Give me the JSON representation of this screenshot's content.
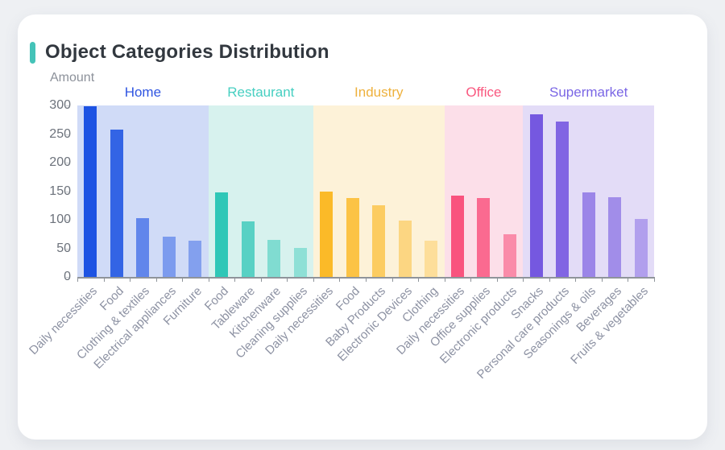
{
  "card": {
    "title": "Object Categories Distribution",
    "accent_color": "#44c3b8"
  },
  "chart_data": {
    "type": "bar",
    "title": "Object Categories Distribution",
    "xlabel": "",
    "ylabel": "Amount",
    "ylim": [
      0,
      300
    ],
    "yticks": [
      0,
      50,
      100,
      150,
      200,
      250,
      300
    ],
    "grid": false,
    "legend_position": "top-inline-group-labels",
    "axis_color": "#8f949a",
    "groups": [
      {
        "name": "Home",
        "label_color": "#2f55e1",
        "bar_color": "#1d53e3",
        "panel_color": "#d0dbf7",
        "categories": [
          "Daily necessities",
          "Food",
          "Clothing & textiles",
          "Electrical appliances",
          "Furniture"
        ],
        "values": [
          299,
          258,
          103,
          70,
          64
        ],
        "bar_opacity": [
          1,
          0.88,
          0.62,
          0.47,
          0.43
        ]
      },
      {
        "name": "Restaurant",
        "label_color": "#46cfc1",
        "bar_color": "#2fc7b7",
        "panel_color": "#d7f2ee",
        "categories": [
          "Food",
          "Tableware",
          "Kitchenware",
          "Cleaning supplies"
        ],
        "values": [
          148,
          97,
          65,
          51
        ],
        "bar_opacity": [
          1,
          0.76,
          0.52,
          0.43
        ]
      },
      {
        "name": "Industry",
        "label_color": "#eeb13c",
        "bar_color": "#fbba28",
        "panel_color": "#fdf2d8",
        "categories": [
          "Daily necessities",
          "Food",
          "Baby Products",
          "Electronic Devices",
          "Clothing"
        ],
        "values": [
          150,
          138,
          126,
          99,
          63
        ],
        "bar_opacity": [
          1,
          0.84,
          0.68,
          0.49,
          0.35
        ]
      },
      {
        "name": "Office",
        "label_color": "#f9587f",
        "bar_color": "#f9537e",
        "panel_color": "#fcdfe9",
        "categories": [
          "Daily necessities",
          "Office supplies",
          "Electronic products"
        ],
        "values": [
          142,
          138,
          75
        ],
        "bar_opacity": [
          1,
          0.84,
          0.6
        ]
      },
      {
        "name": "Supermarket",
        "label_color": "#7a66e5",
        "bar_color": "#7558e0",
        "panel_color": "#e3dcf7",
        "categories": [
          "Snacks",
          "Personal care products",
          "Seasonings & oils",
          "Beverages",
          "Fruits & vegetables"
        ],
        "values": [
          285,
          272,
          148,
          140,
          101
        ],
        "bar_opacity": [
          1,
          0.9,
          0.66,
          0.6,
          0.46
        ]
      }
    ]
  }
}
